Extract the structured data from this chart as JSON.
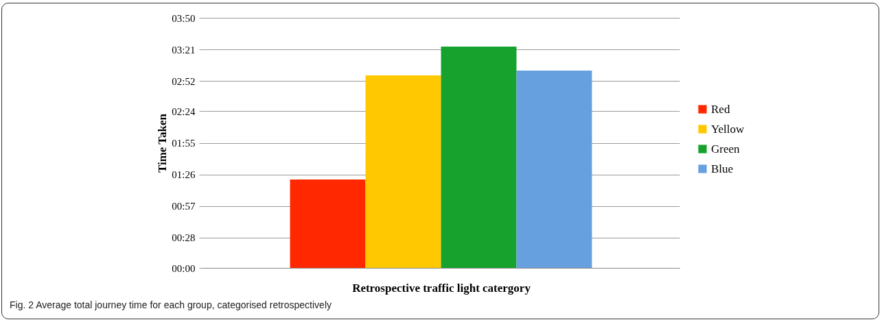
{
  "chart_data": {
    "type": "bar",
    "xlabel": "Retrospective traffic light catergory",
    "ylabel": "Time Taken",
    "categories": [
      null
    ],
    "series": [
      {
        "name": "Red",
        "color": "#ff2800",
        "values": [
          81.3
        ]
      },
      {
        "name": "Yellow",
        "color": "#ffc800",
        "values": [
          177
        ]
      },
      {
        "name": "Green",
        "color": "#16a22c",
        "values": [
          203.5
        ]
      },
      {
        "name": "Blue",
        "color": "#67a0de",
        "values": [
          181.5
        ]
      }
    ],
    "ylim": [
      0,
      230
    ],
    "yticks": [
      {
        "value": 0,
        "label": "00:00"
      },
      {
        "value": 28,
        "label": "00:28"
      },
      {
        "value": 57,
        "label": "00:57"
      },
      {
        "value": 86,
        "label": "01:26"
      },
      {
        "value": 115,
        "label": "01:55"
      },
      {
        "value": 144,
        "label": "02:24"
      },
      {
        "value": 172,
        "label": "02:52"
      },
      {
        "value": 201,
        "label": "03:21"
      },
      {
        "value": 230,
        "label": "03:50"
      }
    ],
    "grid": "y",
    "legend": "right",
    "annotations": [
      "Fig. 2 Average total journey time for each group, categorised retrospectively"
    ]
  }
}
